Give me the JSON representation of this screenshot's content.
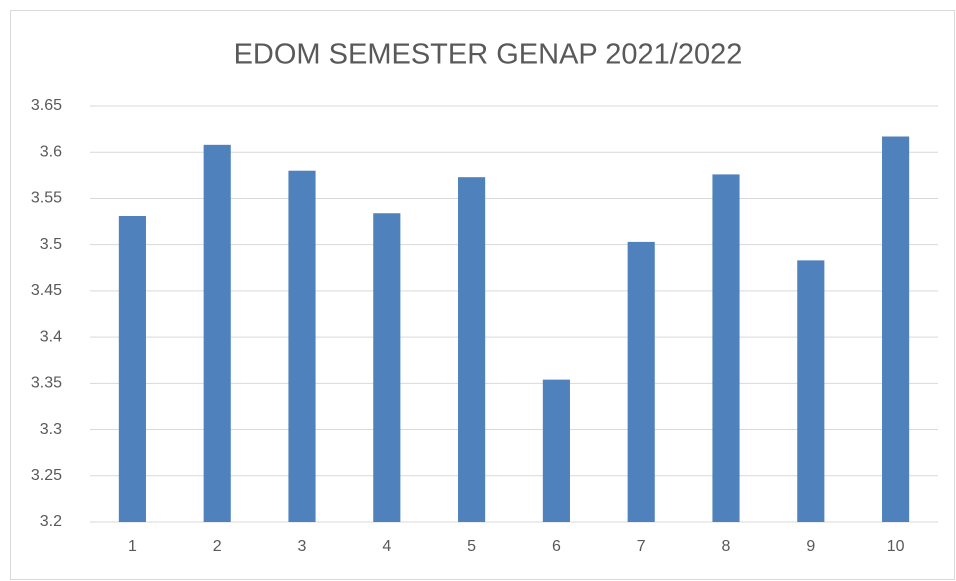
{
  "chart_data": {
    "type": "bar",
    "title": "EDOM SEMESTER GENAP 2021/2022",
    "categories": [
      "1",
      "2",
      "3",
      "4",
      "5",
      "6",
      "7",
      "8",
      "9",
      "10"
    ],
    "values": [
      3.531,
      3.608,
      3.58,
      3.534,
      3.573,
      3.354,
      3.503,
      3.576,
      3.483,
      3.617
    ],
    "color": "#4f81bd",
    "ylim": [
      3.2,
      3.65
    ],
    "yticks": [
      3.2,
      3.25,
      3.3,
      3.35,
      3.4,
      3.45,
      3.5,
      3.55,
      3.6,
      3.65
    ],
    "grid": true
  }
}
